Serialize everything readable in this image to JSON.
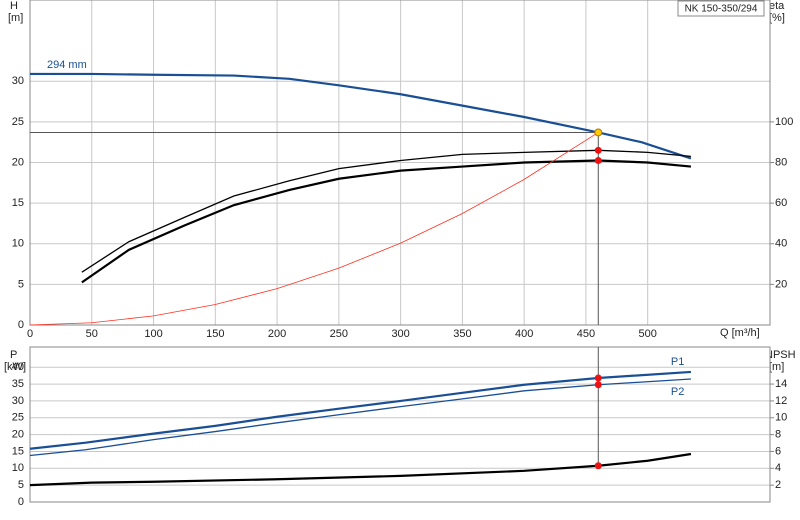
{
  "chart_data": [
    {
      "type": "line",
      "title": "NK 150-350/294",
      "y_label": "H",
      "y_unit": "[m]",
      "y2_label": "eta",
      "y2_unit": "[%]",
      "x_label": "Q [m³/h]",
      "xlim": [
        0,
        599
      ],
      "xticks": [
        0,
        50,
        100,
        150,
        200,
        250,
        300,
        350,
        400,
        450,
        500
      ],
      "ylim": [
        0,
        40
      ],
      "yticks": [
        0,
        5,
        10,
        15,
        20,
        25,
        30
      ],
      "y2lim": [
        0,
        160
      ],
      "y2ticks": [
        20,
        40,
        60,
        80,
        100
      ],
      "grid": true,
      "series": [
        {
          "name": "294 mm",
          "color": "#1a4f95",
          "line": "thick",
          "label_at": "start",
          "x": [
            0,
            50,
            100,
            165,
            210,
            250,
            300,
            350,
            400,
            460,
            495,
            535
          ],
          "values": [
            30.9,
            30.9,
            30.8,
            30.7,
            30.3,
            29.5,
            28.4,
            27.0,
            25.6,
            23.7,
            22.5,
            20.5
          ]
        },
        {
          "color": "#000000",
          "line": "thin",
          "axis": "y2",
          "x": [
            42,
            80,
            125,
            165,
            210,
            250,
            300,
            350,
            400,
            460,
            500,
            535
          ],
          "values": [
            26,
            41,
            53,
            63.5,
            71,
            77,
            81,
            84,
            85,
            86,
            85,
            83
          ]
        },
        {
          "color": "#000000",
          "line": "thick",
          "axis": "y2",
          "x": [
            42,
            80,
            125,
            165,
            210,
            250,
            300,
            350,
            400,
            460,
            500,
            535
          ],
          "values": [
            21,
            37,
            49,
            59,
            66.5,
            72,
            76,
            78,
            80,
            81,
            80,
            78
          ]
        },
        {
          "color": "#ff3020",
          "line": "hair",
          "x": [
            0,
            50,
            100,
            150,
            200,
            250,
            300,
            350,
            400,
            460
          ],
          "values": [
            0,
            0.28,
            1.12,
            2.52,
            4.48,
            7.0,
            10.08,
            13.72,
            17.92,
            23.7
          ]
        }
      ],
      "markers": [
        {
          "x": 460,
          "value": 23.7,
          "color": "#ffcc00",
          "guide": "left-down"
        },
        {
          "x": 460,
          "value": 86,
          "axis": "y2",
          "color": "#ee1111"
        },
        {
          "x": 460,
          "value": 81,
          "axis": "y2",
          "color": "#ee1111"
        }
      ]
    },
    {
      "type": "line",
      "y_label": "P",
      "y_unit": "[kW]",
      "y2_label": "NPSH",
      "y2_unit": "[m]",
      "xlim": [
        0,
        599
      ],
      "ylim": [
        0,
        46
      ],
      "yticks": [
        0,
        5,
        10,
        15,
        20,
        25,
        30,
        35,
        40
      ],
      "y2lim": [
        0,
        18.4
      ],
      "y2ticks": [
        2,
        4,
        6,
        8,
        10,
        12,
        14
      ],
      "grid": true,
      "series": [
        {
          "name": "P1",
          "color": "#1a4f95",
          "line": "thick",
          "label_at": "end-above",
          "x": [
            0,
            45,
            100,
            150,
            200,
            250,
            300,
            350,
            400,
            460,
            535
          ],
          "values": [
            15.8,
            17.6,
            20.3,
            22.6,
            25.3,
            27.7,
            30.0,
            32.4,
            34.8,
            36.8,
            38.6
          ]
        },
        {
          "name": "P2",
          "color": "#1a4f95",
          "line": "thin",
          "label_at": "end-below",
          "x": [
            0,
            45,
            100,
            150,
            200,
            250,
            300,
            350,
            400,
            460,
            535
          ],
          "values": [
            13.8,
            15.5,
            18.5,
            20.9,
            23.5,
            25.9,
            28.3,
            30.6,
            33.0,
            34.8,
            36.5
          ]
        },
        {
          "color": "#000000",
          "line": "thick",
          "axis": "y2",
          "x": [
            0,
            50,
            100,
            200,
            300,
            400,
            460,
            500,
            535
          ],
          "values": [
            2.0,
            2.3,
            2.4,
            2.7,
            3.1,
            3.7,
            4.3,
            4.9,
            5.7
          ]
        }
      ],
      "markers": [
        {
          "x": 460,
          "value": 36.8,
          "color": "#ee1111"
        },
        {
          "x": 460,
          "value": 34.8,
          "color": "#ee1111"
        },
        {
          "x": 460,
          "value": 4.3,
          "axis": "y2",
          "color": "#ee1111",
          "guide": "up"
        }
      ]
    }
  ]
}
